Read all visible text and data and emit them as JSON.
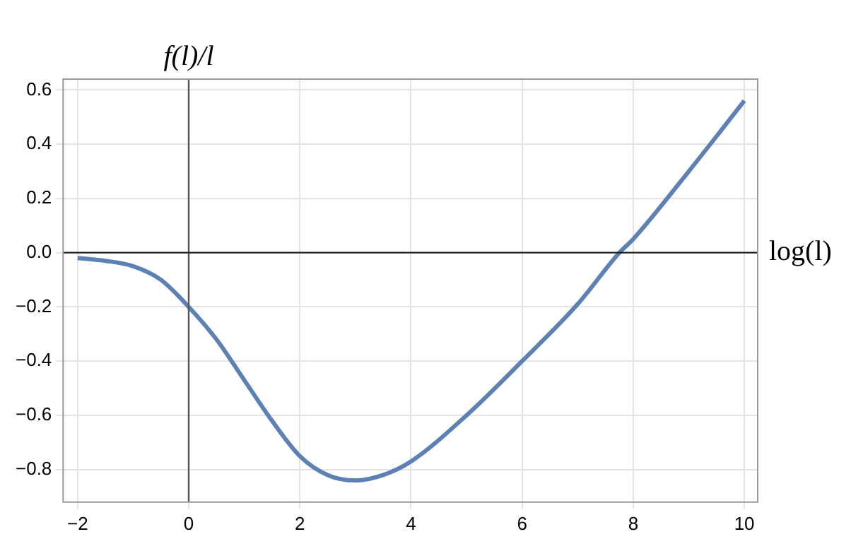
{
  "chart_data": {
    "type": "line",
    "xlabel": "log(l)",
    "ylabel": "f(l)/l",
    "x": [
      -2,
      -1.5,
      -1,
      -0.5,
      0,
      0.5,
      1,
      1.5,
      2,
      2.5,
      3,
      3.5,
      4,
      5,
      6,
      7,
      7.75,
      8,
      9,
      10
    ],
    "series": [
      {
        "color": "#5e81b5",
        "values": [
          -0.02,
          -0.03,
          -0.05,
          -0.1,
          -0.2,
          -0.32,
          -0.47,
          -0.62,
          -0.75,
          -0.82,
          -0.84,
          -0.82,
          -0.77,
          -0.6,
          -0.4,
          -0.19,
          0,
          0.05,
          0.3,
          0.56
        ]
      }
    ],
    "xlim": [
      -2.26,
      10.24
    ],
    "ylim": [
      -0.92,
      0.64
    ],
    "xticks": [
      -2,
      0,
      2,
      4,
      6,
      8,
      10
    ],
    "yticks": [
      {
        "value": -0.8,
        "label": "−0.8"
      },
      {
        "value": -0.6,
        "label": "−0.6"
      },
      {
        "value": -0.4,
        "label": "−0.4"
      },
      {
        "value": -0.2,
        "label": "−0.2"
      },
      {
        "value": 0,
        "label": "0.0"
      },
      {
        "value": 0.2,
        "label": "0.2"
      },
      {
        "value": 0.4,
        "label": "0.4"
      },
      {
        "value": 0.6,
        "label": "0.6"
      }
    ],
    "ref_lines": [
      {
        "axis": "x",
        "value": 0,
        "color": "#555555"
      },
      {
        "axis": "y",
        "value": 0,
        "color": "#222222"
      }
    ],
    "grid": true,
    "legend": false,
    "marker": "none",
    "line_style": "solid"
  }
}
